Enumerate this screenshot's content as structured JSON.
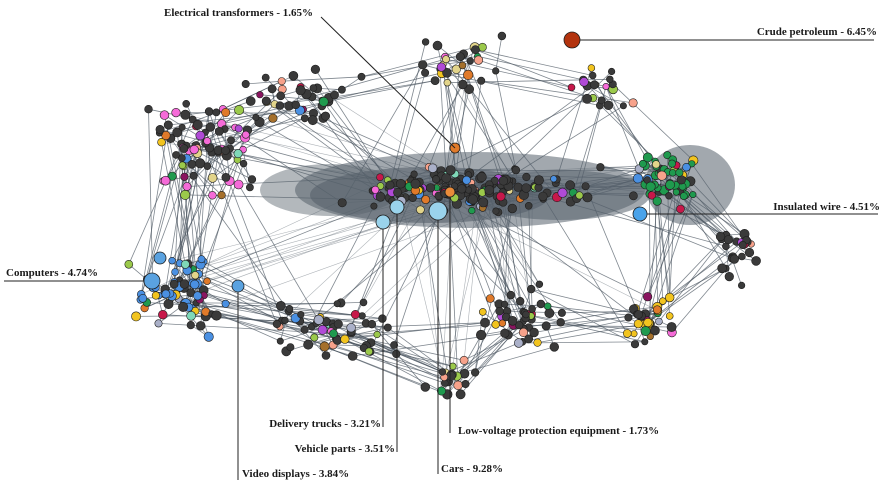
{
  "colors": {
    "background": "#ffffff",
    "edge": "#4a5560",
    "generic_node": "#3a3a3a",
    "node_outline": "#1e1e1e",
    "dense_core": "#56616b",
    "computers": "#5aa2e0",
    "cars": "#9ad3ec",
    "crude_petroleum": "#b3330e",
    "insulated_wire": "#4aa3ea",
    "electrical_transformers": "#e07a2a",
    "low_voltage_equipment": "#e98c3a",
    "palette": [
      "#1f9a4e",
      "#f2c41f",
      "#4a90e2",
      "#e07a2a",
      "#b04ad6",
      "#f56bd8",
      "#8a1560",
      "#a5702c",
      "#9bc94b",
      "#f7a28b",
      "#aab0c8",
      "#e2d48a",
      "#c7184a",
      "#7fd8b8"
    ]
  },
  "products": [
    {
      "id": "electrical_transformers",
      "label": "Electrical transformers - 1.65%"
    },
    {
      "id": "crude_petroleum",
      "label": "Crude petroleum - 6.45%"
    },
    {
      "id": "insulated_wire",
      "label": "Insulated wire - 4.51%"
    },
    {
      "id": "computers",
      "label": "Computers - 4.74%"
    },
    {
      "id": "delivery_trucks",
      "label": "Delivery trucks - 3.21%"
    },
    {
      "id": "vehicle_parts",
      "label": "Vehicle parts - 3.51%"
    },
    {
      "id": "low_voltage_equipment",
      "label": "Low-voltage protection equipment - 1.73%"
    },
    {
      "id": "video_displays",
      "label": "Video displays - 3.84%"
    },
    {
      "id": "cars",
      "label": "Cars - 9.28%"
    }
  ]
}
